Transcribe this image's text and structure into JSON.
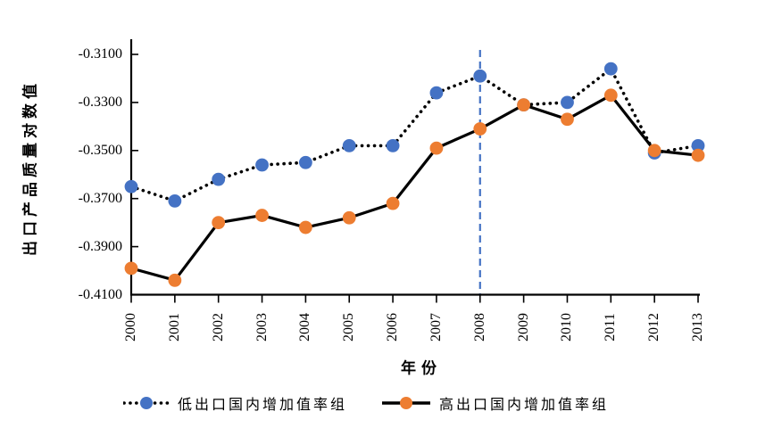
{
  "figure": {
    "background": "#ffffff",
    "axis_color": "#000000"
  },
  "chart_data": {
    "type": "line",
    "title": "",
    "xlabel": "年份",
    "ylabel": "出口产品质量对数值",
    "x": [
      2000,
      2001,
      2002,
      2003,
      2004,
      2005,
      2006,
      2007,
      2008,
      2009,
      2010,
      2011,
      2012,
      2013
    ],
    "x_tick_labels": [
      "2000",
      "2001",
      "2002",
      "2003",
      "2004",
      "2005",
      "2006",
      "2007",
      "2008",
      "2009",
      "2010",
      "2011",
      "2012",
      "2013"
    ],
    "y_ticks": [
      -0.31,
      -0.33,
      -0.35,
      -0.37,
      -0.39,
      -0.41
    ],
    "y_tick_labels": [
      "-0.3100",
      "-0.3300",
      "-0.3500",
      "-0.3700",
      "-0.3900",
      "-0.4100"
    ],
    "ylim": [
      -0.41,
      -0.31
    ],
    "grid": false,
    "legend_position": "bottom",
    "reference_line": {
      "x": 2008,
      "style": "dashed",
      "color": "#4472C4"
    },
    "series": [
      {
        "name": "低出口国内增加值率组",
        "line_style": "dotted",
        "line_color": "#000000",
        "marker_color": "#4472C4",
        "values": [
          -0.365,
          -0.371,
          -0.362,
          -0.356,
          -0.355,
          -0.348,
          -0.348,
          -0.326,
          -0.319,
          -0.331,
          -0.33,
          -0.316,
          -0.351,
          -0.348
        ]
      },
      {
        "name": "高出口国内增加值率组",
        "line_style": "solid",
        "line_color": "#000000",
        "marker_color": "#ED7D31",
        "values": [
          -0.399,
          -0.404,
          -0.38,
          -0.377,
          -0.382,
          -0.378,
          -0.372,
          -0.349,
          -0.341,
          -0.331,
          -0.337,
          -0.327,
          -0.35,
          -0.352
        ]
      }
    ]
  }
}
